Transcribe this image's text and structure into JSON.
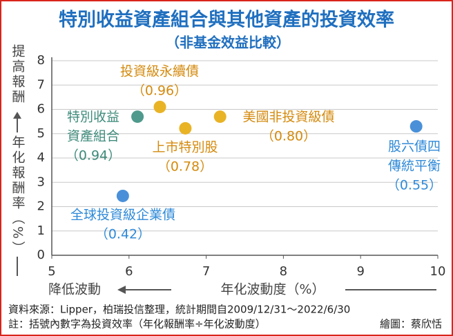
{
  "chart_data": {
    "type": "scatter",
    "title": "特別收益資產組合與其他資產的投資效率",
    "subtitle": "（非基金效益比較）",
    "y_arrow_label": "提高報酬",
    "ylabel": "年化報酬率（%）",
    "x_arrow_label": "降低波動",
    "xlabel": "年化波動度（%）",
    "xlim": [
      5,
      10
    ],
    "xticks": [
      5,
      6,
      7,
      8,
      9,
      10
    ],
    "ylim": [
      0,
      8
    ],
    "yticks": [
      0,
      1,
      2,
      3,
      4,
      5,
      6,
      7,
      8
    ],
    "grid": true,
    "points": [
      {
        "label_lines": [
          "特別收益",
          "資產組合"
        ],
        "efficiency_label": "（0.94）",
        "x": 6.11,
        "y": 5.7,
        "color": "#4f9a8c"
      },
      {
        "label_lines": [
          "投資級永續債"
        ],
        "efficiency_label": "（0.96）",
        "x": 6.4,
        "y": 6.1,
        "color": "#e9b326"
      },
      {
        "label_lines": [
          "上市特別股"
        ],
        "efficiency_label": "（0.78）",
        "x": 6.73,
        "y": 5.22,
        "color": "#e9b326"
      },
      {
        "label_lines": [
          "美國非投資級債"
        ],
        "efficiency_label": "（0.80）",
        "x": 7.18,
        "y": 5.7,
        "color": "#e9b326"
      },
      {
        "label_lines": [
          "股六債四",
          "傳統平衡"
        ],
        "efficiency_label": "（0.55）",
        "x": 9.72,
        "y": 5.3,
        "color": "#4a90d9"
      },
      {
        "label_lines": [
          "全球投資級企業債"
        ],
        "efficiency_label": "（0.42）",
        "x": 5.92,
        "y": 2.44,
        "color": "#4a90d9"
      }
    ],
    "notes": [
      "資料來源：Lipper，柏瑞投信整理，統計期間自2009/12/31～2022/6/30",
      "註：括號內數字為投資效率（年化報酬率÷年化波動度）"
    ],
    "credit": "繪圖：蔡欣恬"
  }
}
